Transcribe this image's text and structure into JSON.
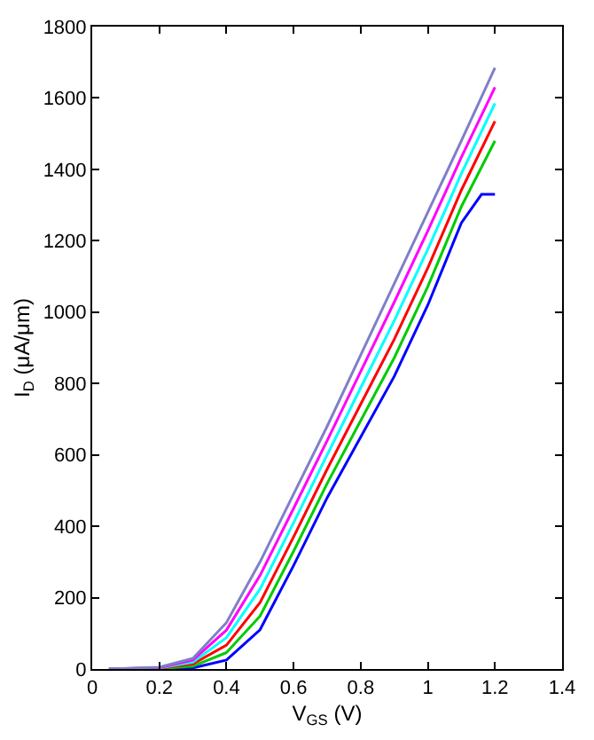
{
  "chart_data": {
    "type": "line",
    "xlabel": "V$_{GS}$ (V)",
    "ylabel": "I$_{D}$ (μA/μm)",
    "xlim": [
      0,
      1.4
    ],
    "xticks": [
      0,
      0.2,
      0.4,
      0.6,
      0.8,
      1,
      1.2,
      1.4
    ],
    "ylim": [
      0,
      1800
    ],
    "yticks": [
      0,
      200,
      400,
      600,
      800,
      1000,
      1200,
      1400,
      1600,
      1800
    ],
    "grid": false,
    "marker": "none",
    "line_style": "solid",
    "series": [
      {
        "color": "#0000ff",
        "x": [
          0.05,
          0.2,
          0.3,
          0.4,
          0.5,
          0.6,
          0.7,
          0.8,
          0.9,
          1.0,
          1.1,
          1.16,
          1.2
        ],
        "values": [
          0,
          0,
          3,
          25,
          110,
          290,
          480,
          650,
          820,
          1020,
          1250,
          1330,
          1330
        ]
      },
      {
        "color": "#00cc00",
        "x": [
          0.05,
          0.2,
          0.3,
          0.4,
          0.5,
          0.6,
          0.7,
          0.8,
          0.9,
          1.0,
          1.1,
          1.2
        ],
        "values": [
          0,
          1,
          8,
          46,
          148,
          330,
          520,
          696,
          872,
          1072,
          1296,
          1480
        ]
      },
      {
        "color": "#ff0000",
        "x": [
          0.05,
          0.2,
          0.3,
          0.4,
          0.5,
          0.6,
          0.7,
          0.8,
          0.9,
          1.0,
          1.1,
          1.2
        ],
        "values": [
          0,
          2,
          14,
          67,
          186,
          370,
          560,
          742,
          924,
          1124,
          1342,
          1535
        ]
      },
      {
        "color": "#00ffff",
        "x": [
          0.05,
          0.2,
          0.3,
          0.4,
          0.5,
          0.6,
          0.7,
          0.8,
          0.9,
          1.0,
          1.1,
          1.2
        ],
        "values": [
          0,
          3,
          19,
          88,
          224,
          410,
          600,
          788,
          976,
          1176,
          1388,
          1585
        ]
      },
      {
        "color": "#ff00ff",
        "x": [
          0.05,
          0.2,
          0.3,
          0.4,
          0.5,
          0.6,
          0.7,
          0.8,
          0.9,
          1.0,
          1.1,
          1.2
        ],
        "values": [
          0,
          4,
          25,
          109,
          262,
          450,
          640,
          834,
          1028,
          1228,
          1434,
          1630
        ]
      },
      {
        "color": "#7f7fc8",
        "x": [
          0.05,
          0.2,
          0.3,
          0.4,
          0.5,
          0.6,
          0.7,
          0.8,
          0.9,
          1.0,
          1.1,
          1.2
        ],
        "values": [
          0,
          5,
          30,
          130,
          300,
          490,
          680,
          880,
          1080,
          1280,
          1480,
          1685
        ]
      }
    ]
  }
}
